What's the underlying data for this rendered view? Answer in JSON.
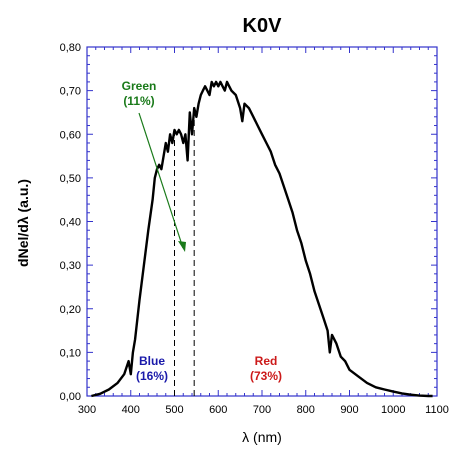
{
  "chart_data": {
    "type": "line",
    "title": "K0V",
    "xlabel": "λ (nm)",
    "ylabel": "dNel/dλ (a.u.)",
    "xlim": [
      300,
      1100
    ],
    "ylim": [
      0,
      0.8
    ],
    "x_ticks": [
      "300",
      "400",
      "500",
      "600",
      "700",
      "800",
      "900",
      "1000",
      "1100"
    ],
    "y_ticks": [
      "0,00",
      "0,10",
      "0,20",
      "0,30",
      "0,40",
      "0,50",
      "0,60",
      "0,70",
      "0,80"
    ],
    "grid": false,
    "series": [
      {
        "color": "#000000",
        "x": [
          310,
          330,
          350,
          370,
          385,
          395,
          400,
          405,
          410,
          420,
          430,
          440,
          450,
          455,
          460,
          465,
          470,
          475,
          480,
          485,
          490,
          495,
          500,
          505,
          510,
          515,
          520,
          525,
          530,
          535,
          540,
          545,
          550,
          555,
          560,
          565,
          570,
          575,
          580,
          585,
          590,
          595,
          600,
          605,
          610,
          615,
          620,
          625,
          630,
          640,
          650,
          655,
          660,
          670,
          680,
          690,
          700,
          710,
          720,
          730,
          740,
          750,
          760,
          770,
          780,
          790,
          800,
          810,
          820,
          830,
          840,
          850,
          855,
          860,
          870,
          880,
          890,
          900,
          920,
          940,
          960,
          980,
          1000,
          1020,
          1040,
          1060,
          1080,
          1090
        ],
        "values": [
          0.0,
          0.005,
          0.015,
          0.03,
          0.05,
          0.08,
          0.05,
          0.1,
          0.13,
          0.22,
          0.3,
          0.38,
          0.45,
          0.5,
          0.52,
          0.53,
          0.52,
          0.55,
          0.58,
          0.56,
          0.6,
          0.58,
          0.61,
          0.6,
          0.61,
          0.6,
          0.58,
          0.6,
          0.54,
          0.65,
          0.6,
          0.66,
          0.64,
          0.67,
          0.69,
          0.7,
          0.71,
          0.7,
          0.69,
          0.72,
          0.71,
          0.72,
          0.71,
          0.72,
          0.71,
          0.7,
          0.72,
          0.71,
          0.7,
          0.69,
          0.66,
          0.63,
          0.67,
          0.66,
          0.64,
          0.62,
          0.6,
          0.58,
          0.56,
          0.53,
          0.51,
          0.48,
          0.45,
          0.42,
          0.38,
          0.35,
          0.31,
          0.28,
          0.24,
          0.21,
          0.18,
          0.15,
          0.1,
          0.14,
          0.12,
          0.09,
          0.08,
          0.06,
          0.045,
          0.03,
          0.02,
          0.015,
          0.01,
          0.006,
          0.003,
          0.001,
          0.0,
          0.0
        ]
      }
    ],
    "band_boundaries": [
      500,
      545
    ],
    "annotations": [
      {
        "text": "Green",
        "color": "#1a7a1a"
      },
      {
        "text": "(11%)",
        "color": "#1a7a1a"
      },
      {
        "text": "Blue",
        "color": "#1a1aaa"
      },
      {
        "text": "(16%)",
        "color": "#1a1aaa"
      },
      {
        "text": "Red",
        "color": "#cc1a1a"
      },
      {
        "text": "(73%)",
        "color": "#cc1a1a"
      }
    ],
    "axis_color": "#3333cc"
  }
}
